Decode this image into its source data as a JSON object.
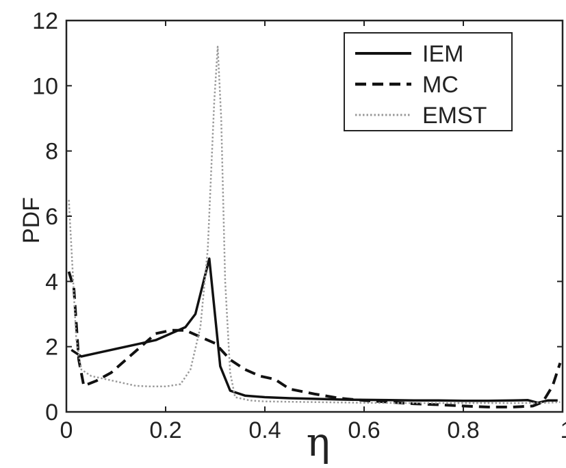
{
  "chart_data": {
    "type": "line",
    "xlabel": "η",
    "ylabel": "PDF",
    "xlim": [
      0,
      1
    ],
    "ylim": [
      0,
      12
    ],
    "xticks": [
      {
        "value": 0,
        "label": "0"
      },
      {
        "value": 0.2,
        "label": "0.2"
      },
      {
        "value": 0.4,
        "label": "0.4"
      },
      {
        "value": 0.6,
        "label": "0.6"
      },
      {
        "value": 0.8,
        "label": "0.8"
      },
      {
        "value": 1,
        "label": "1"
      }
    ],
    "yticks": [
      {
        "value": 0,
        "label": "0"
      },
      {
        "value": 2,
        "label": "2"
      },
      {
        "value": 4,
        "label": "4"
      },
      {
        "value": 6,
        "label": "6"
      },
      {
        "value": 8,
        "label": "8"
      },
      {
        "value": 10,
        "label": "10"
      },
      {
        "value": 12,
        "label": "12"
      }
    ],
    "grid": false,
    "legend_position": "top-right",
    "series": [
      {
        "name": "IEM",
        "style": "solid",
        "color": "#111111",
        "x": [
          0.01,
          0.03,
          0.06,
          0.09,
          0.12,
          0.15,
          0.18,
          0.21,
          0.24,
          0.26,
          0.288,
          0.31,
          0.33,
          0.36,
          0.4,
          0.45,
          0.5,
          0.55,
          0.6,
          0.65,
          0.7,
          0.75,
          0.8,
          0.85,
          0.9,
          0.93,
          0.95,
          0.97,
          0.99
        ],
        "y": [
          1.9,
          1.7,
          1.8,
          1.9,
          2.0,
          2.1,
          2.2,
          2.4,
          2.6,
          3.0,
          4.7,
          1.4,
          0.65,
          0.5,
          0.45,
          0.42,
          0.4,
          0.38,
          0.37,
          0.36,
          0.35,
          0.35,
          0.34,
          0.34,
          0.35,
          0.36,
          0.28,
          0.35,
          0.35
        ]
      },
      {
        "name": "MC",
        "style": "dashed",
        "color": "#111111",
        "x": [
          0.005,
          0.015,
          0.025,
          0.035,
          0.06,
          0.09,
          0.12,
          0.15,
          0.18,
          0.21,
          0.24,
          0.27,
          0.3,
          0.33,
          0.36,
          0.39,
          0.42,
          0.45,
          0.5,
          0.55,
          0.6,
          0.65,
          0.7,
          0.75,
          0.8,
          0.85,
          0.9,
          0.94,
          0.96,
          0.98,
          0.995
        ],
        "y": [
          4.3,
          3.8,
          1.6,
          0.8,
          0.95,
          1.2,
          1.6,
          2.0,
          2.4,
          2.5,
          2.5,
          2.3,
          2.1,
          1.6,
          1.3,
          1.1,
          1.0,
          0.7,
          0.55,
          0.42,
          0.35,
          0.3,
          0.25,
          0.22,
          0.18,
          0.15,
          0.15,
          0.18,
          0.3,
          0.8,
          1.5
        ]
      },
      {
        "name": "EMST",
        "style": "dotted",
        "color": "#999999",
        "x": [
          0.005,
          0.012,
          0.02,
          0.03,
          0.05,
          0.08,
          0.11,
          0.14,
          0.17,
          0.2,
          0.23,
          0.25,
          0.27,
          0.285,
          0.298,
          0.305,
          0.312,
          0.32,
          0.33,
          0.34,
          0.37,
          0.4,
          0.5,
          0.6,
          0.7,
          0.8,
          0.9,
          0.97,
          0.995
        ],
        "y": [
          6.5,
          4.5,
          2.2,
          1.3,
          1.1,
          1.0,
          0.9,
          0.8,
          0.78,
          0.78,
          0.85,
          1.3,
          2.6,
          5.0,
          9.5,
          11.2,
          9.0,
          4.0,
          1.2,
          0.45,
          0.35,
          0.32,
          0.3,
          0.28,
          0.27,
          0.27,
          0.27,
          0.28,
          0.3
        ]
      }
    ]
  }
}
